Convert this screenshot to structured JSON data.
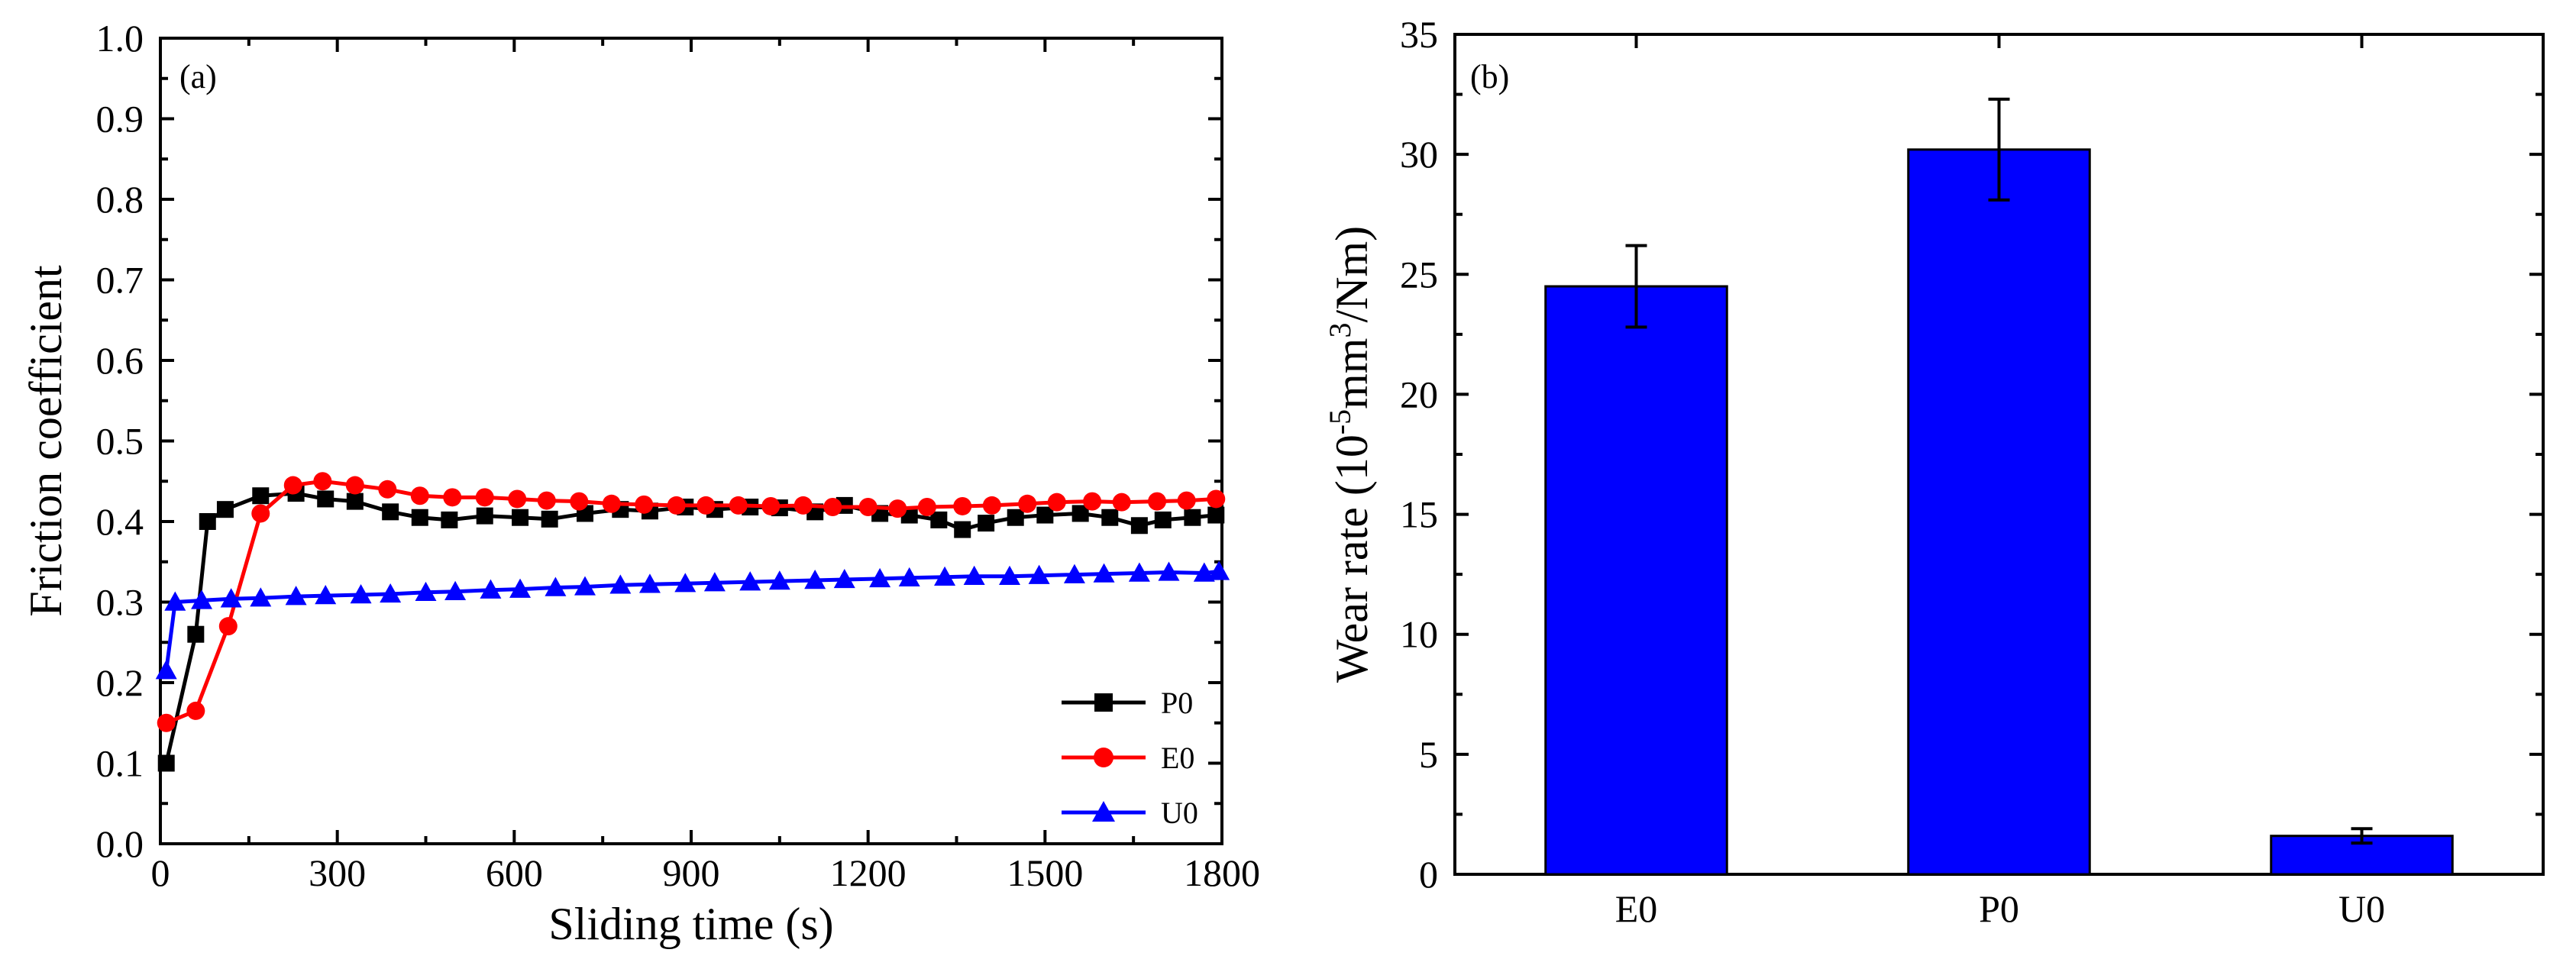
{
  "chart_data": [
    {
      "panel": "(a)",
      "type": "line",
      "xlabel": "Sliding time (s)",
      "ylabel": "Friction coefficient",
      "xlim": [
        0,
        1800
      ],
      "ylim": [
        0.0,
        1.0
      ],
      "xticks": [
        "0",
        "300",
        "600",
        "900",
        "1200",
        "1500",
        "1800"
      ],
      "yticks": [
        "0.0",
        "0.1",
        "0.2",
        "0.3",
        "0.4",
        "0.5",
        "0.6",
        "0.7",
        "0.8",
        "0.9",
        "1.0"
      ],
      "legend_position": "bottom-right",
      "series": [
        {
          "name": "P0",
          "color": "#000000",
          "marker": "square",
          "x": [
            10,
            60,
            80,
            110,
            170,
            230,
            280,
            330,
            390,
            440,
            490,
            550,
            610,
            660,
            720,
            780,
            830,
            890,
            940,
            1000,
            1050,
            1110,
            1160,
            1220,
            1270,
            1320,
            1360,
            1400,
            1450,
            1500,
            1560,
            1610,
            1660,
            1700,
            1750,
            1790
          ],
          "y": [
            0.1,
            0.26,
            0.4,
            0.415,
            0.432,
            0.435,
            0.428,
            0.425,
            0.412,
            0.405,
            0.402,
            0.407,
            0.405,
            0.403,
            0.41,
            0.415,
            0.413,
            0.418,
            0.415,
            0.418,
            0.417,
            0.412,
            0.42,
            0.41,
            0.408,
            0.402,
            0.39,
            0.398,
            0.405,
            0.408,
            0.41,
            0.405,
            0.395,
            0.402,
            0.405,
            0.408
          ]
        },
        {
          "name": "E0",
          "color": "#ff0000",
          "marker": "circle",
          "x": [
            10,
            60,
            115,
            170,
            225,
            275,
            330,
            385,
            440,
            495,
            550,
            605,
            655,
            710,
            765,
            820,
            875,
            925,
            980,
            1035,
            1090,
            1140,
            1200,
            1250,
            1300,
            1360,
            1410,
            1470,
            1520,
            1580,
            1630,
            1690,
            1740,
            1790
          ],
          "y": [
            0.15,
            0.165,
            0.27,
            0.41,
            0.445,
            0.45,
            0.445,
            0.44,
            0.432,
            0.43,
            0.43,
            0.428,
            0.426,
            0.425,
            0.422,
            0.421,
            0.42,
            0.42,
            0.42,
            0.419,
            0.42,
            0.418,
            0.418,
            0.416,
            0.418,
            0.419,
            0.42,
            0.422,
            0.424,
            0.425,
            0.424,
            0.425,
            0.426,
            0.428
          ]
        },
        {
          "name": "U0",
          "color": "#0000ff",
          "marker": "triangle",
          "x": [
            10,
            25,
            70,
            120,
            170,
            230,
            280,
            340,
            390,
            450,
            500,
            560,
            610,
            670,
            720,
            780,
            830,
            890,
            940,
            1000,
            1050,
            1110,
            1160,
            1220,
            1270,
            1330,
            1380,
            1440,
            1490,
            1550,
            1600,
            1660,
            1710,
            1770,
            1795
          ],
          "y": [
            0.215,
            0.3,
            0.302,
            0.304,
            0.305,
            0.307,
            0.308,
            0.309,
            0.31,
            0.312,
            0.313,
            0.315,
            0.316,
            0.318,
            0.319,
            0.321,
            0.322,
            0.323,
            0.324,
            0.325,
            0.326,
            0.327,
            0.328,
            0.329,
            0.33,
            0.331,
            0.332,
            0.332,
            0.333,
            0.334,
            0.335,
            0.336,
            0.337,
            0.336,
            0.338
          ]
        }
      ]
    },
    {
      "panel": "(b)",
      "type": "bar",
      "ylabel_prefix": "Wear rate (10",
      "ylabel_exp1": "-5",
      "ylabel_mid": "mm",
      "ylabel_exp2": "3",
      "ylabel_suffix": "/Nm)",
      "categories": [
        "E0",
        "P0",
        "U0"
      ],
      "values": [
        24.5,
        30.2,
        1.6
      ],
      "errors": [
        1.7,
        2.1,
        0.3
      ],
      "ylim": [
        0,
        35
      ],
      "yticks": [
        "0",
        "5",
        "10",
        "15",
        "20",
        "25",
        "30",
        "35"
      ],
      "bar_color": "#0000ff"
    }
  ]
}
